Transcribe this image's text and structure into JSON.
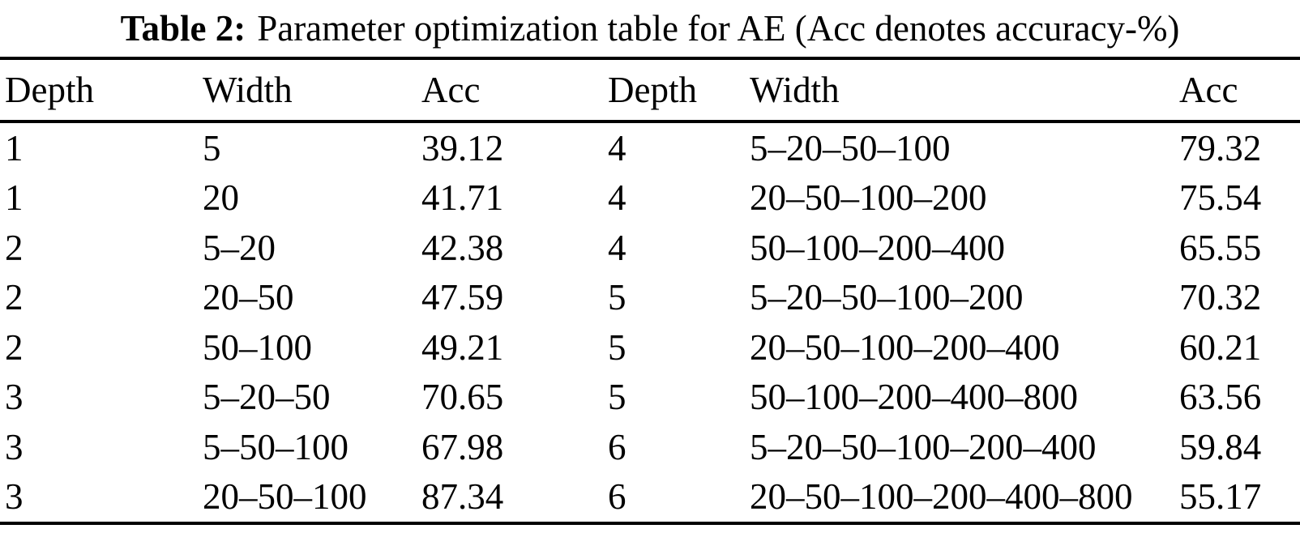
{
  "caption": {
    "label": "Table 2:",
    "text": "Parameter optimization table for AE (Acc denotes accuracy-%)"
  },
  "table": {
    "headers": [
      "Depth",
      "Width",
      "Acc",
      "Depth",
      "Width",
      "Acc"
    ],
    "rows": [
      [
        "1",
        "5",
        "39.12",
        "4",
        "5–20–50–100",
        "79.32"
      ],
      [
        "1",
        "20",
        "41.71",
        "4",
        "20–50–100–200",
        "75.54"
      ],
      [
        "2",
        "5–20",
        "42.38",
        "4",
        "50–100–200–400",
        "65.55"
      ],
      [
        "2",
        "20–50",
        "47.59",
        "5",
        "5–20–50–100–200",
        "70.32"
      ],
      [
        "2",
        "50–100",
        "49.21",
        "5",
        "20–50–100–200–400",
        "60.21"
      ],
      [
        "3",
        "5–20–50",
        "70.65",
        "5",
        "50–100–200–400–800",
        "63.56"
      ],
      [
        "3",
        "5–50–100",
        "67.98",
        "6",
        "5–20–50–100–200–400",
        "59.84"
      ],
      [
        "3",
        "20–50–100",
        "87.34",
        "6",
        "20–50–100–200–400–800",
        "55.17"
      ]
    ]
  },
  "colors": {
    "background": "#ffffff",
    "text": "#000000",
    "rule": "#000000"
  }
}
